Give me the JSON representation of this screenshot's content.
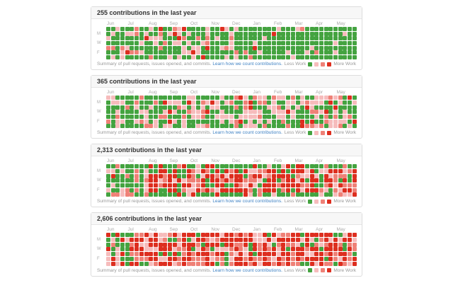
{
  "page": {
    "background": "#ffffff"
  },
  "colors": {
    "levels": [
      "#44a340",
      "#f6bcbc",
      "#ef8177",
      "#dd2e1f"
    ],
    "link": "#4183c4",
    "header_bg": "#f7f7f7",
    "border": "#dddddd"
  },
  "months": [
    "Jun",
    "Jul",
    "Aug",
    "Sep",
    "Oct",
    "Nov",
    "Dec",
    "Jan",
    "Feb",
    "Mar",
    "Apr",
    "May"
  ],
  "day_labels": [
    "M",
    "W",
    "F"
  ],
  "footer": {
    "summary_text": "Summary of pull requests, issues opened, and commits.",
    "link_text": "Learn how we count contributions.",
    "legend_less": "Less Work",
    "legend_more": "More Work"
  },
  "chart_data": [
    {
      "type": "heatmap",
      "title": "255 contributions in the last year",
      "total": 255,
      "weeks": 53,
      "days": 7,
      "legend": [
        "Less Work",
        "More Work"
      ],
      "seed": 11,
      "segments": [
        {
          "from": 0,
          "to": 28,
          "weights": [
            0.6,
            0.22,
            0.11,
            0.07
          ]
        },
        {
          "from": 28,
          "to": 53,
          "weights": [
            0.9,
            0.06,
            0.03,
            0.01
          ]
        }
      ]
    },
    {
      "type": "heatmap",
      "title": "365 contributions in the last year",
      "total": 365,
      "weeks": 53,
      "days": 7,
      "legend": [
        "Less Work",
        "More Work"
      ],
      "seed": 22,
      "segments": [
        {
          "from": 0,
          "to": 53,
          "weights": [
            0.5,
            0.28,
            0.13,
            0.09
          ]
        }
      ]
    },
    {
      "type": "heatmap",
      "title": "2,313 contributions in the last year",
      "total": 2313,
      "weeks": 53,
      "days": 7,
      "legend": [
        "Less Work",
        "More Work"
      ],
      "seed": 33,
      "weekend_weights": [
        0.65,
        0.15,
        0.1,
        0.1
      ],
      "segments": [
        {
          "from": 0,
          "to": 9,
          "weights": [
            0.72,
            0.14,
            0.08,
            0.06
          ]
        },
        {
          "from": 9,
          "to": 53,
          "weights": [
            0.2,
            0.15,
            0.2,
            0.45
          ]
        }
      ]
    },
    {
      "type": "heatmap",
      "title": "2,606 contributions in the last year",
      "total": 2606,
      "weeks": 53,
      "days": 7,
      "legend": [
        "Less Work",
        "More Work"
      ],
      "seed": 44,
      "segments": [
        {
          "from": 0,
          "to": 5,
          "weights": [
            0.45,
            0.2,
            0.15,
            0.2
          ]
        },
        {
          "from": 5,
          "to": 53,
          "weights": [
            0.12,
            0.16,
            0.24,
            0.48
          ]
        }
      ]
    }
  ]
}
